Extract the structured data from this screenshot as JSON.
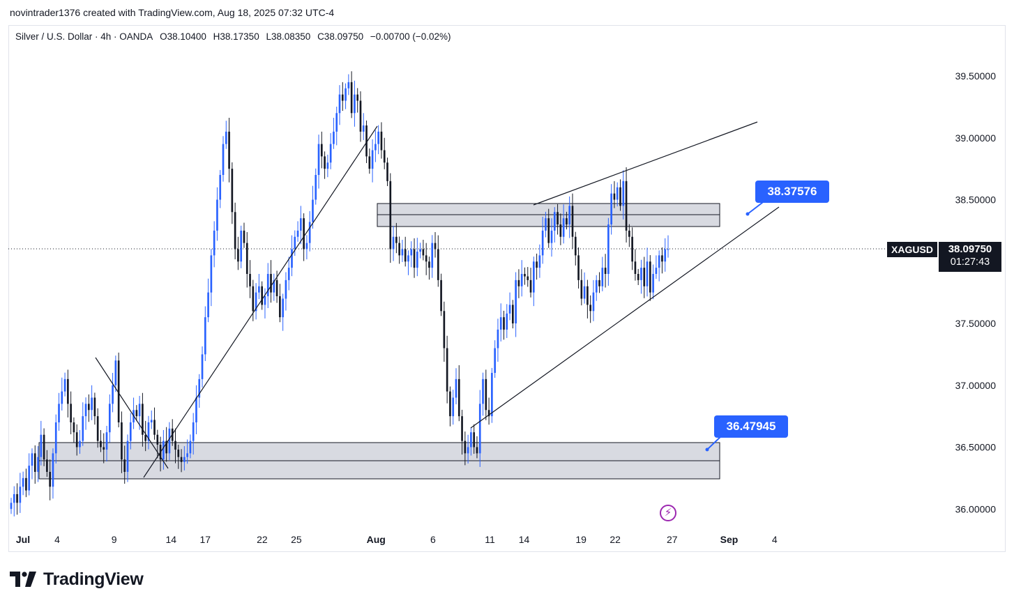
{
  "caption": "novintrader1376 created with TradingView.com, Aug 18, 2025 07:32 UTC-4",
  "legend": {
    "symbol": "Silver / U.S. Dollar · 4h · OANDA",
    "open": "O38.10400",
    "high": "H38.17350",
    "low": "L38.08350",
    "close": "C38.09750",
    "change": "−0.00700 (−0.02%)"
  },
  "price_tag": {
    "symbol": "XAGUSD",
    "price": "38.09750",
    "countdown": "01:27:43"
  },
  "callouts": {
    "upper": "38.37576",
    "lower": "36.47945"
  },
  "brand": "TradingView",
  "colors": {
    "up": "#2962ff",
    "down": "#131722",
    "zone_fill": "#d1d4dc",
    "callout": "#2962ff"
  },
  "chart_data": {
    "type": "candlestick",
    "title": "Silver / U.S. Dollar · 4h · OANDA",
    "y_ticks": [
      "39.50000",
      "39.00000",
      "38.50000",
      "38.00000",
      "37.50000",
      "37.00000",
      "36.50000",
      "36.00000"
    ],
    "ylim": [
      35.9,
      39.8
    ],
    "x_ticks": [
      {
        "label": "Jul",
        "day": 1
      },
      {
        "label": "4",
        "day": 4
      },
      {
        "label": "9",
        "day": 9
      },
      {
        "label": "14",
        "day": 14
      },
      {
        "label": "17",
        "day": 17
      },
      {
        "label": "22",
        "day": 22
      },
      {
        "label": "25",
        "day": 25
      },
      {
        "label": "Aug",
        "day": 32
      },
      {
        "label": "6",
        "day": 37
      },
      {
        "label": "11",
        "day": 42
      },
      {
        "label": "14",
        "day": 45
      },
      {
        "label": "19",
        "day": 50
      },
      {
        "label": "22",
        "day": 53
      },
      {
        "label": "27",
        "day": 58
      },
      {
        "label": "Sep",
        "day": 63
      },
      {
        "label": "4",
        "day": 67
      }
    ],
    "closes": [
      36.05,
      36.12,
      36.05,
      36.18,
      36.25,
      36.15,
      36.35,
      36.45,
      36.3,
      36.42,
      36.6,
      36.4,
      36.3,
      36.18,
      36.45,
      36.7,
      36.85,
      36.95,
      37.05,
      36.85,
      36.7,
      36.62,
      36.5,
      36.55,
      36.75,
      36.85,
      36.8,
      36.9,
      36.75,
      36.55,
      36.5,
      36.48,
      36.62,
      36.85,
      37.0,
      37.2,
      36.7,
      36.4,
      36.3,
      36.55,
      36.7,
      36.8,
      36.75,
      36.85,
      36.6,
      36.55,
      36.7,
      36.72,
      36.6,
      36.52,
      36.4,
      36.55,
      36.45,
      36.65,
      36.55,
      36.48,
      36.42,
      36.38,
      36.42,
      36.45,
      36.55,
      36.7,
      36.9,
      37.05,
      37.25,
      37.55,
      37.75,
      38.05,
      38.25,
      38.5,
      38.7,
      38.95,
      39.05,
      38.75,
      38.4,
      38.1,
      38.0,
      38.25,
      38.15,
      37.9,
      37.8,
      37.6,
      37.75,
      37.8,
      37.65,
      37.72,
      37.9,
      37.75,
      37.85,
      37.72,
      37.55,
      37.7,
      37.85,
      37.95,
      38.1,
      38.2,
      38.25,
      38.35,
      38.1,
      38.15,
      38.32,
      38.5,
      38.7,
      38.95,
      38.85,
      38.75,
      38.8,
      38.95,
      39.05,
      39.2,
      39.35,
      39.3,
      39.4,
      39.45,
      39.2,
      39.35,
      39.3,
      39.05,
      39.1,
      38.85,
      38.75,
      38.9,
      38.95,
      39.05,
      38.9,
      38.8,
      38.65,
      38.1,
      38.2,
      38.15,
      38.05,
      38.1,
      38.0,
      38.05,
      38.1,
      37.95,
      38.08,
      38.1,
      38.05,
      38.0,
      37.95,
      38.15,
      38.1,
      37.85,
      37.6,
      37.3,
      36.95,
      36.75,
      36.9,
      37.05,
      36.75,
      36.55,
      36.45,
      36.5,
      36.62,
      36.5,
      36.45,
      36.85,
      37.05,
      36.8,
      36.75,
      37.1,
      37.3,
      37.45,
      37.55,
      37.45,
      37.58,
      37.65,
      37.5,
      37.85,
      37.8,
      37.9,
      37.88,
      37.85,
      37.75,
      38.0,
      37.95,
      38.05,
      38.25,
      38.35,
      38.15,
      38.25,
      38.4,
      38.3,
      38.2,
      38.35,
      38.3,
      38.45,
      38.2,
      38.05,
      37.85,
      37.7,
      37.8,
      37.65,
      37.6,
      37.75,
      37.85,
      37.8,
      37.95,
      37.9,
      38.3,
      38.55,
      38.5,
      38.6,
      38.45,
      38.65,
      38.25,
      38.2,
      38.0,
      37.9,
      37.85,
      37.95,
      37.8,
      38.0,
      37.75,
      37.9,
      37.95,
      38.05,
      38.0,
      38.1,
      38.1
    ]
  }
}
